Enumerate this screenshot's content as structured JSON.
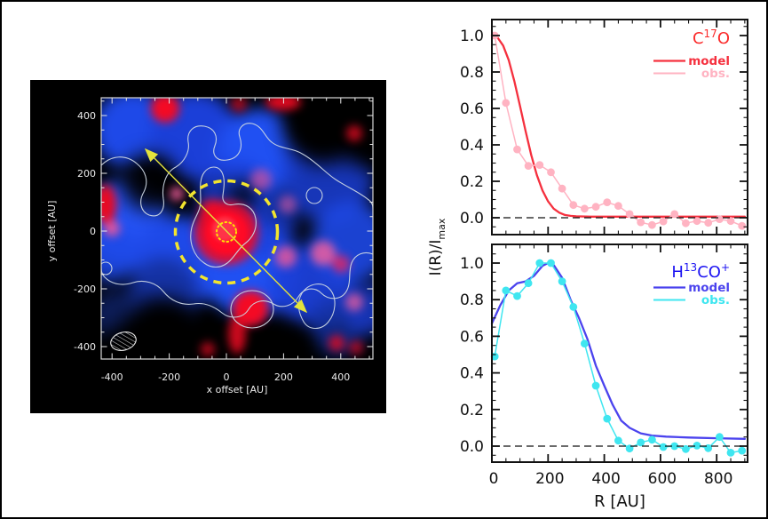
{
  "map": {
    "xlabel": "x offset [AU]",
    "ylabel": "y offset [AU]",
    "x_tick_labels": [
      "-400",
      "-200",
      "0",
      "200",
      "400"
    ],
    "y_tick_labels": [
      "400",
      "200",
      "0",
      "-200",
      "-400"
    ],
    "x_tick_values": [
      -400,
      -200,
      0,
      200,
      400
    ],
    "y_tick_values": [
      400,
      200,
      0,
      -200,
      -400
    ],
    "overlay_colors": {
      "dashed_circle": "#f2e42e",
      "dotted_circle": "#ffe400",
      "arrow": "#e3e33c",
      "beam_outline": "#e8e8e8",
      "contour": "#ccd7e3"
    }
  },
  "ylabel": {
    "main": "I(R)/I",
    "sub": "max"
  },
  "chart_data": [
    {
      "type": "line",
      "title": "C17O",
      "title_parts": {
        "pre": "C",
        "sup": "17",
        "post": "O"
      },
      "title_color": "#fb2b2b",
      "xlim": [
        0,
        900
      ],
      "ylim": [
        -0.09,
        1.09
      ],
      "xticks": [
        0,
        200,
        400,
        600,
        800
      ],
      "ytick_labels": [
        "0.0",
        "0.2",
        "0.4",
        "0.6",
        "0.8",
        "1.0"
      ],
      "ytick_values": [
        0.0,
        0.2,
        0.4,
        0.6,
        0.8,
        1.0
      ],
      "zero_line": true,
      "legend": [
        {
          "label": "model",
          "color": "#f5303e"
        },
        {
          "label": "obs.",
          "color": "#ffb3c2"
        }
      ],
      "series": [
        {
          "name": "model",
          "color": "#f5303e",
          "markers": false,
          "x": [
            0,
            20,
            40,
            60,
            80,
            100,
            120,
            140,
            160,
            180,
            200,
            220,
            240,
            260,
            280,
            300,
            350,
            400,
            500,
            600,
            700,
            800,
            900
          ],
          "y": [
            1.0,
            0.99,
            0.945,
            0.865,
            0.75,
            0.615,
            0.475,
            0.345,
            0.235,
            0.15,
            0.09,
            0.05,
            0.028,
            0.015,
            0.01,
            0.008,
            0.006,
            0.006,
            0.006,
            0.006,
            0.006,
            0.006,
            0.006
          ]
        },
        {
          "name": "obs.",
          "color": "#ffb3c2",
          "markers": true,
          "x": [
            10,
            50,
            90,
            130,
            170,
            210,
            250,
            290,
            330,
            370,
            410,
            450,
            490,
            530,
            570,
            610,
            650,
            690,
            730,
            770,
            810,
            850,
            890
          ],
          "y": [
            1.0,
            0.63,
            0.375,
            0.285,
            0.29,
            0.25,
            0.16,
            0.07,
            0.05,
            0.06,
            0.085,
            0.065,
            0.02,
            -0.025,
            -0.04,
            -0.02,
            0.02,
            -0.03,
            -0.018,
            -0.028,
            -0.008,
            -0.018,
            -0.045
          ]
        }
      ]
    },
    {
      "type": "line",
      "title": "H13CO+",
      "title_parts": {
        "pre": "H",
        "sup": "13",
        "mid": "CO",
        "sup2": "+"
      },
      "title_color": "#1c13f2",
      "xlabel": "R [AU]",
      "xlim": [
        0,
        900
      ],
      "ylim": [
        -0.09,
        1.09
      ],
      "xticks": [
        0,
        200,
        400,
        600,
        800
      ],
      "xtick_labels": [
        "0",
        "200",
        "400",
        "600",
        "800"
      ],
      "ytick_labels": [
        "0.0",
        "0.2",
        "0.4",
        "0.6",
        "0.8",
        "1.0"
      ],
      "ytick_values": [
        0.0,
        0.2,
        0.4,
        0.6,
        0.8,
        1.0
      ],
      "zero_line": true,
      "legend": [
        {
          "label": "model",
          "color": "#4b43ee"
        },
        {
          "label": "obs.",
          "color": "#3fe6f0"
        }
      ],
      "series": [
        {
          "name": "model",
          "color": "#4b43ee",
          "markers": false,
          "x": [
            0,
            30,
            60,
            90,
            120,
            150,
            180,
            200,
            220,
            250,
            280,
            310,
            340,
            370,
            400,
            430,
            460,
            490,
            530,
            570,
            620,
            700,
            800,
            900
          ],
          "y": [
            0.67,
            0.77,
            0.85,
            0.89,
            0.9,
            0.93,
            0.985,
            1.0,
            0.99,
            0.92,
            0.8,
            0.7,
            0.585,
            0.44,
            0.33,
            0.225,
            0.14,
            0.1,
            0.07,
            0.058,
            0.052,
            0.047,
            0.043,
            0.04
          ]
        },
        {
          "name": "obs.",
          "color": "#3fe6f0",
          "markers": true,
          "x": [
            10,
            50,
            90,
            130,
            170,
            210,
            250,
            290,
            330,
            370,
            410,
            450,
            490,
            530,
            570,
            610,
            650,
            690,
            730,
            770,
            810,
            850,
            890
          ],
          "y": [
            0.49,
            0.85,
            0.82,
            0.89,
            1.0,
            1.0,
            0.9,
            0.76,
            0.56,
            0.33,
            0.15,
            0.03,
            -0.013,
            0.02,
            0.035,
            -0.005,
            0.0,
            -0.016,
            0.003,
            -0.011,
            0.05,
            -0.036,
            -0.025
          ]
        }
      ]
    }
  ]
}
